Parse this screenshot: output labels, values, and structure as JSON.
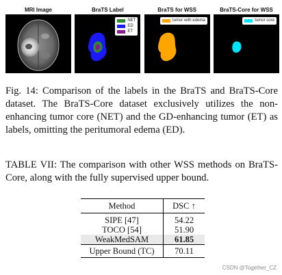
{
  "figure": {
    "panels": [
      {
        "title": "MRI Image"
      },
      {
        "title": "BraTS Label",
        "legend": [
          {
            "label": "NET",
            "color": "#2e8b2e"
          },
          {
            "label": "ED",
            "color": "#1a1aff"
          },
          {
            "label": "ET",
            "color": "#8b1a8b"
          }
        ]
      },
      {
        "title": "BraTS for WSS",
        "legend": [
          {
            "label": "tumor with edema",
            "color": "#ffa500"
          }
        ]
      },
      {
        "title": "BraTS-Core for WSS",
        "legend": [
          {
            "label": "tumor core",
            "color": "#00e5ff"
          }
        ]
      }
    ],
    "caption": "Fig. 14: Comparison of the labels in the BraTS and BraTS-Core dataset. The BraTS-Core dataset exclusively utilizes the non-enhancing tumor core (NET) and the GD-enhancing tumor (ET) as labels, omitting the peritumoral edema (ED)."
  },
  "table": {
    "caption": "TABLE VII: The comparison with other WSS methods on BraTS-Core, along with the fully supervised upper bound.",
    "headers": {
      "method": "Method",
      "dsc": "DSC ↑"
    },
    "rows": [
      {
        "method": "SIPE [47]",
        "dsc": "54.22"
      },
      {
        "method": "TOCO [54]",
        "dsc": "51.90"
      },
      {
        "method": "WeakMedSAM",
        "dsc": "61.85"
      },
      {
        "method": "Upper Bound (TC)",
        "dsc": "70.11"
      }
    ]
  },
  "watermark": "CSDN @Together_CZ"
}
